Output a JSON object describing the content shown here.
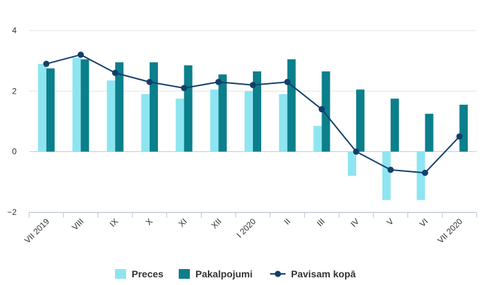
{
  "chart_data": {
    "type": "bar",
    "categories": [
      "VII 2019",
      "VIII",
      "IX",
      "X",
      "XI",
      "XII",
      "I 2020",
      "II",
      "III",
      "IV",
      "V",
      "VI",
      "VII 2020"
    ],
    "series": [
      {
        "name": "Preces",
        "type": "bar",
        "color": "#8ee5f2",
        "values": [
          2.9,
          3.1,
          2.35,
          1.9,
          1.75,
          2.05,
          2.0,
          1.9,
          0.85,
          -0.8,
          -1.6,
          -1.6,
          0.0
        ]
      },
      {
        "name": "Pakalpojumi",
        "type": "bar",
        "color": "#0b7f8b",
        "values": [
          2.75,
          3.05,
          2.95,
          2.95,
          2.85,
          2.55,
          2.65,
          3.05,
          2.65,
          2.05,
          1.75,
          1.25,
          1.55
        ]
      },
      {
        "name": "Pavisam kopā",
        "type": "line",
        "color": "#123f6b",
        "values": [
          2.9,
          3.2,
          2.6,
          2.3,
          2.1,
          2.3,
          2.2,
          2.3,
          1.4,
          0.0,
          -0.6,
          -0.7,
          0.5
        ]
      }
    ],
    "yticks": [
      "4",
      "2",
      "0",
      "−2"
    ],
    "ytick_values": [
      4,
      2,
      0,
      -2
    ],
    "ylim": [
      -2,
      4
    ],
    "grid": true,
    "legend_position": "bottom"
  }
}
